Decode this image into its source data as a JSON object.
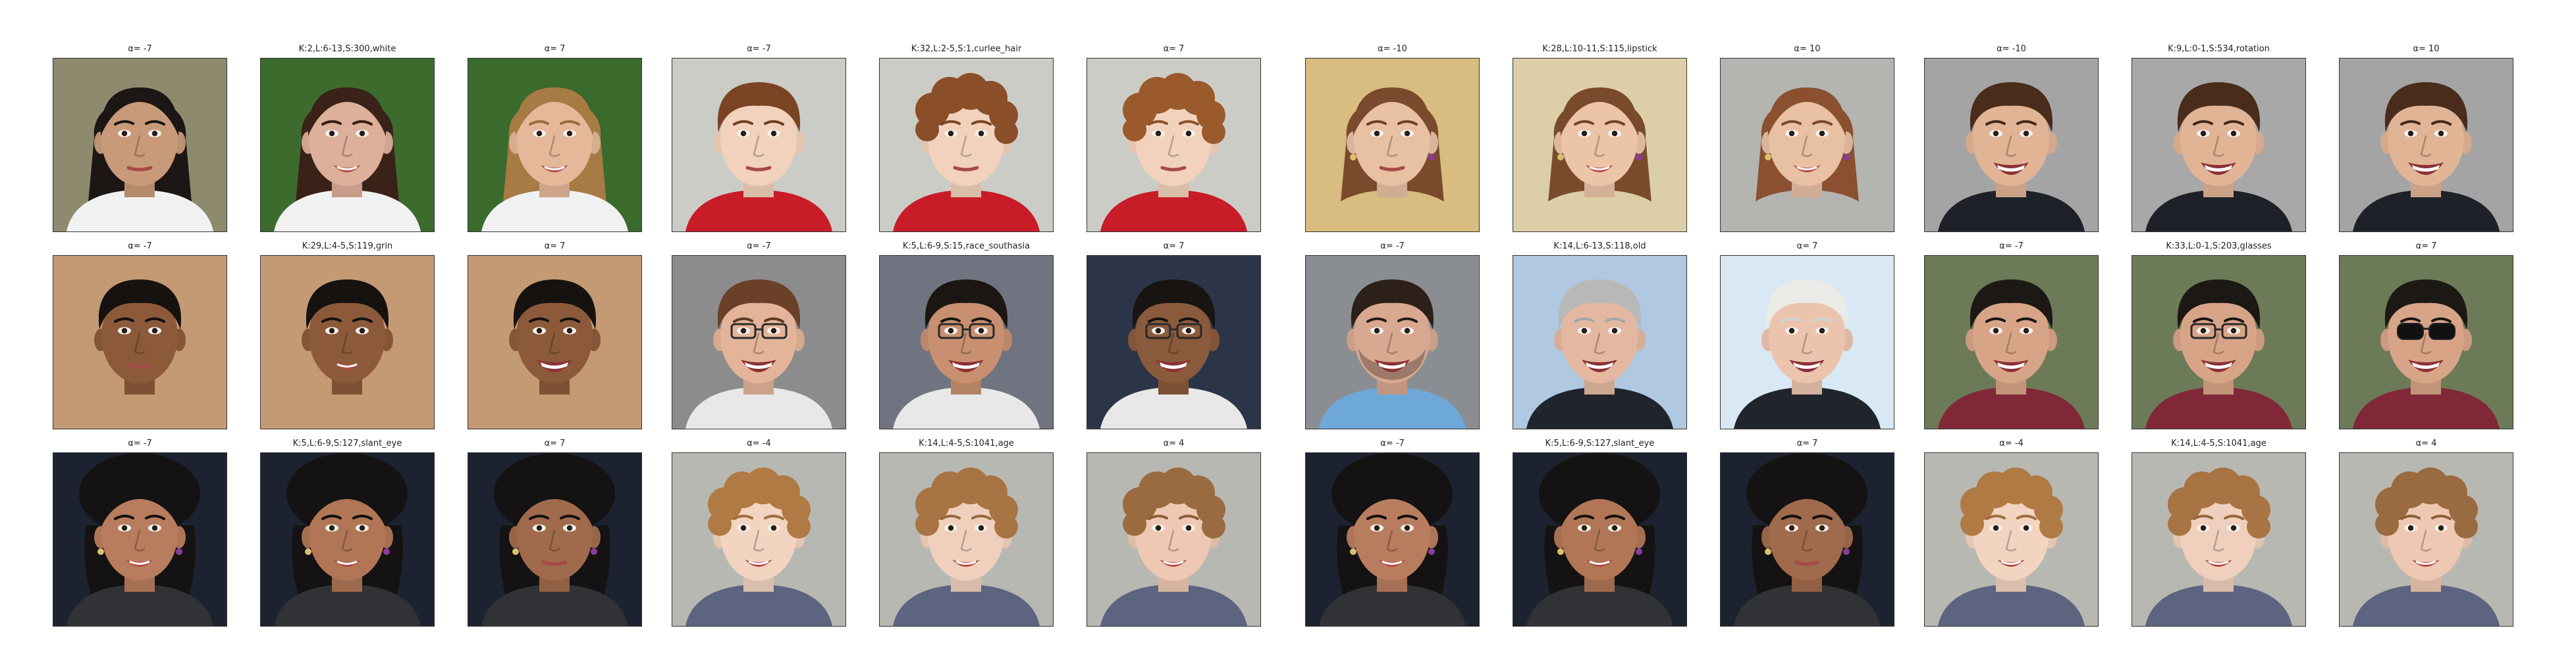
{
  "figure": {
    "rows": [
      {
        "cells": [
          {
            "caption": "α= -7",
            "skin": "#c99a7a",
            "hair": "#1c1614",
            "bg": "#8d8a6e",
            "shirt": "#f1f1f1",
            "hair_style": "long",
            "accessory": "none",
            "expression": "neutral"
          },
          {
            "caption": "K:2,L:6-13,S:300,white",
            "skin": "#dcb09a",
            "hair": "#3a2218",
            "bg": "#3d6b2e",
            "shirt": "#f1f1f1",
            "hair_style": "long",
            "accessory": "none",
            "expression": "smile"
          },
          {
            "caption": "α= 7",
            "skin": "#e4b898",
            "hair": "#a87a44",
            "bg": "#3a6a2c",
            "shirt": "#f1f1f1",
            "hair_style": "long",
            "accessory": "none",
            "expression": "smile"
          },
          {
            "caption": "α= -7",
            "skin": "#f2d2bc",
            "hair": "#7a4424",
            "bg": "#ccccc6",
            "shirt": "#c81c28",
            "hair_style": "short",
            "accessory": "none",
            "expression": "neutral"
          },
          {
            "caption": "K:32,L:2-5,S:1,curlee_hair",
            "skin": "#f2d2bc",
            "hair": "#8a4e28",
            "bg": "#ccccc6",
            "shirt": "#c81c28",
            "hair_style": "curly",
            "accessory": "none",
            "expression": "neutral"
          },
          {
            "caption": "α= 7",
            "skin": "#f2d2bc",
            "hair": "#9a5a2c",
            "bg": "#ccccc6",
            "shirt": "#c81c28",
            "hair_style": "curly",
            "accessory": "none",
            "expression": "neutral"
          },
          {
            "caption": "α= -10",
            "skin": "#e8c0a4",
            "hair": "#7a4a2c",
            "bg": "#d8bc80",
            "shirt": "#d8bc80",
            "hair_style": "long",
            "accessory": "earrings",
            "expression": "neutral"
          },
          {
            "caption": "K:28,L:10-11,S:115,lipstick",
            "skin": "#ecc4a8",
            "hair": "#7a4a2c",
            "bg": "#dccfa8",
            "shirt": "#dccfa8",
            "hair_style": "long",
            "accessory": "earrings",
            "expression": "smile"
          },
          {
            "caption": "α= 10",
            "skin": "#e8c0a4",
            "hair": "#8a5030",
            "bg": "#b4b4b0",
            "shirt": "#b4b4b0",
            "hair_style": "long",
            "accessory": "earrings",
            "expression": "smile"
          },
          {
            "caption": "α= -10",
            "skin": "#e2b496",
            "hair": "#4a2c1c",
            "bg": "#a4a4a4",
            "shirt": "#1e2128",
            "hair_style": "short",
            "accessory": "none",
            "expression": "grin"
          },
          {
            "caption": "K:9,L:0-1,S:534,rotation",
            "skin": "#e2b496",
            "hair": "#4a2c1c",
            "bg": "#a8a8a8",
            "shirt": "#1e2128",
            "hair_style": "short",
            "accessory": "none",
            "expression": "grin"
          },
          {
            "caption": "α= 10",
            "skin": "#e2b496",
            "hair": "#4a2c1c",
            "bg": "#a4a4a4",
            "shirt": "#1e2128",
            "hair_style": "short",
            "accessory": "none",
            "expression": "grin"
          }
        ]
      },
      {
        "cells": [
          {
            "caption": "α= -7",
            "skin": "#8c5a3a",
            "hair": "#161210",
            "bg": "#c49a74",
            "shirt": "#c49a74",
            "hair_style": "short",
            "accessory": "none",
            "expression": "neutral"
          },
          {
            "caption": "K:29,L:4-5,S:119,grin",
            "skin": "#8c5a3a",
            "hair": "#161210",
            "bg": "#c49a74",
            "shirt": "#c49a74",
            "hair_style": "short",
            "accessory": "none",
            "expression": "smile"
          },
          {
            "caption": "α= 7",
            "skin": "#8c5a3a",
            "hair": "#161210",
            "bg": "#c49a74",
            "shirt": "#c49a74",
            "hair_style": "short",
            "accessory": "none",
            "expression": "grin"
          },
          {
            "caption": "α= -7",
            "skin": "#e4b49a",
            "hair": "#6a4028",
            "bg": "#8c8c8c",
            "shirt": "#e8e8e8",
            "hair_style": "short",
            "accessory": "glasses",
            "expression": "grin"
          },
          {
            "caption": "K:5,L:6-9,S:15,race_southasia",
            "skin": "#c89070",
            "hair": "#1c1612",
            "bg": "#707480",
            "shirt": "#e8e8e8",
            "hair_style": "short",
            "accessory": "glasses",
            "expression": "grin"
          },
          {
            "caption": "α= 7",
            "skin": "#8a5a3c",
            "hair": "#181412",
            "bg": "#2c3548",
            "shirt": "#e8e8e8",
            "hair_style": "short",
            "accessory": "glasses",
            "expression": "grin"
          },
          {
            "caption": "α= -7",
            "skin": "#d8a890",
            "hair": "#2c2018",
            "bg": "#8a8e92",
            "shirt": "#6ea8d8",
            "hair_style": "short",
            "accessory": "beard",
            "expression": "grin"
          },
          {
            "caption": "K:14,L:6-13,S:118,old",
            "skin": "#e4b8a0",
            "hair": "#b8b8b8",
            "bg": "#b0c8e0",
            "shirt": "#20242c",
            "hair_style": "short",
            "accessory": "none",
            "expression": "grin"
          },
          {
            "caption": "α= 7",
            "skin": "#ecc4ae",
            "hair": "#eaeae6",
            "bg": "#d8e8f4",
            "shirt": "#20242c",
            "hair_style": "short",
            "accessory": "none",
            "expression": "grin"
          },
          {
            "caption": "α= -7",
            "skin": "#d8a488",
            "hair": "#1c1814",
            "bg": "#6c7a58",
            "shirt": "#802838",
            "hair_style": "short",
            "accessory": "none",
            "expression": "grin"
          },
          {
            "caption": "K:33,L:0-1,S:203,glasses",
            "skin": "#d8a488",
            "hair": "#1c1814",
            "bg": "#6c7a58",
            "shirt": "#802838",
            "hair_style": "short",
            "accessory": "glasses",
            "expression": "grin"
          },
          {
            "caption": "α= 7",
            "skin": "#d8a488",
            "hair": "#1c1814",
            "bg": "#6c7a58",
            "shirt": "#802838",
            "hair_style": "short",
            "accessory": "sunglasses",
            "expression": "grin"
          }
        ]
      },
      {
        "cells": [
          {
            "caption": "α= -7",
            "skin": "#b87c5e",
            "hair": "#141212",
            "bg": "#1c2230",
            "shirt": "#303236",
            "hair_style": "bun",
            "accessory": "earrings",
            "expression": "smile"
          },
          {
            "caption": "K:5,L:6-9,S:127,slant_eye",
            "skin": "#b07656",
            "hair": "#141212",
            "bg": "#1c2230",
            "shirt": "#303236",
            "hair_style": "bun",
            "accessory": "earrings",
            "expression": "smile"
          },
          {
            "caption": "α= 7",
            "skin": "#a06a4c",
            "hair": "#141212",
            "bg": "#1c2230",
            "shirt": "#303236",
            "hair_style": "bun",
            "accessory": "earrings",
            "expression": "neutral"
          },
          {
            "caption": "α= -4",
            "skin": "#f2d4c0",
            "hair": "#b07a44",
            "bg": "#b8b8b2",
            "shirt": "#5c6480",
            "hair_style": "curly",
            "accessory": "none",
            "expression": "smile"
          },
          {
            "caption": "K:14,L:4-5,S:1041,age",
            "skin": "#f0d0bc",
            "hair": "#a87444",
            "bg": "#b8b8b2",
            "shirt": "#5c6480",
            "hair_style": "curly",
            "accessory": "none",
            "expression": "smile"
          },
          {
            "caption": "α= 4",
            "skin": "#eec8b2",
            "hair": "#9a6a40",
            "bg": "#b8b8b2",
            "shirt": "#5c6480",
            "hair_style": "curly",
            "accessory": "none",
            "expression": "smile"
          },
          {
            "caption": "α= -7",
            "skin": "#b87c5e",
            "hair": "#141212",
            "bg": "#1c2230",
            "shirt": "#303236",
            "hair_style": "bun",
            "accessory": "earrings",
            "expression": "smile"
          },
          {
            "caption": "K:5,L:6-9,S:127,slant_eye",
            "skin": "#b07656",
            "hair": "#141212",
            "bg": "#1c2230",
            "shirt": "#303236",
            "hair_style": "bun",
            "accessory": "earrings",
            "expression": "smile"
          },
          {
            "caption": "α= 7",
            "skin": "#a06a4c",
            "hair": "#141212",
            "bg": "#1c2230",
            "shirt": "#303236",
            "hair_style": "bun",
            "accessory": "earrings",
            "expression": "neutral"
          },
          {
            "caption": "α= -4",
            "skin": "#f2d4c0",
            "hair": "#b07a44",
            "bg": "#b8b8b2",
            "shirt": "#5c6480",
            "hair_style": "curly",
            "accessory": "none",
            "expression": "smile"
          },
          {
            "caption": "K:14,L:4-5,S:1041,age",
            "skin": "#f0d0bc",
            "hair": "#a87444",
            "bg": "#b8b8b2",
            "shirt": "#5c6480",
            "hair_style": "curly",
            "accessory": "none",
            "expression": "smile"
          },
          {
            "caption": "α= 4",
            "skin": "#eec8b2",
            "hair": "#9a6a40",
            "bg": "#b8b8b2",
            "shirt": "#5c6480",
            "hair_style": "curly",
            "accessory": "none",
            "expression": "smile"
          }
        ]
      }
    ]
  }
}
